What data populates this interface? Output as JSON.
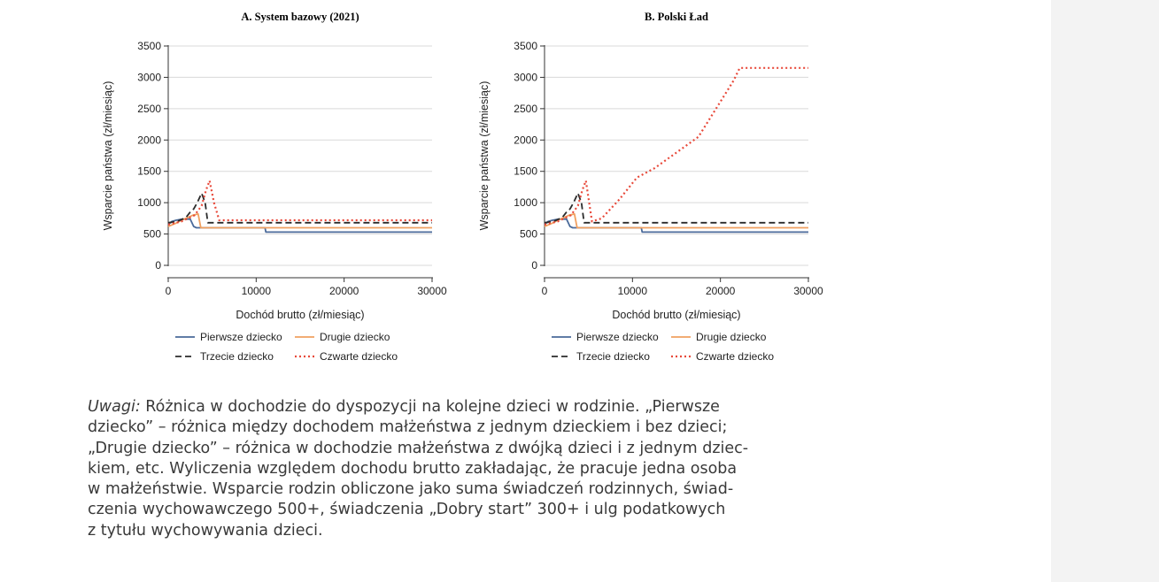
{
  "colors": {
    "first": "#4a6a9a",
    "second": "#f0a060",
    "third": "#2b2b2b",
    "fourth": "#e8493a",
    "axis": "#333333",
    "grid": "#d9d9d9",
    "side_band": "#f3f3f3"
  },
  "legend": {
    "first": "Pierwsze dziecko",
    "second": "Drugie dziecko",
    "third": "Trzecie dziecko",
    "fourth": "Czwarte dziecko"
  },
  "chart_data": [
    {
      "type": "line",
      "title": "A.   System bazowy (2021)",
      "xlabel": "Dochód brutto (zł/miesiąc)",
      "ylabel": "Wsparcie państwa (zł/miesiąc)",
      "xlim": [
        0,
        30000
      ],
      "ylim": [
        0,
        3500
      ],
      "xticks": [
        0,
        10000,
        20000,
        30000
      ],
      "yticks": [
        0,
        500,
        1000,
        1500,
        2000,
        2500,
        3000,
        3500
      ],
      "grid": true,
      "legend_position": "bottom",
      "series": [
        {
          "name": "Pierwsze dziecko",
          "style": "solid",
          "color_key": "first",
          "x": [
            0,
            400,
            900,
            1500,
            2500,
            2900,
            3200,
            11000,
            11100,
            30000
          ],
          "y": [
            650,
            700,
            720,
            735,
            740,
            620,
            600,
            600,
            530,
            530
          ]
        },
        {
          "name": "Drugie dziecko",
          "style": "solid",
          "color_key": "second",
          "x": [
            0,
            500,
            1000,
            1500,
            2200,
            2800,
            3400,
            3700,
            30000
          ],
          "y": [
            620,
            650,
            680,
            720,
            760,
            800,
            820,
            600,
            600
          ]
        },
        {
          "name": "Trzecie dziecko",
          "style": "dash",
          "color_key": "third",
          "x": [
            0,
            1000,
            2000,
            2500,
            2900,
            3300,
            3800,
            4200,
            4500,
            30000
          ],
          "y": [
            680,
            700,
            760,
            850,
            900,
            1000,
            1150,
            1000,
            680,
            680
          ]
        },
        {
          "name": "Czwarte dziecko",
          "style": "dot",
          "color_key": "fourth",
          "x": [
            0,
            1500,
            3000,
            3800,
            4300,
            4700,
            5200,
            5800,
            30000
          ],
          "y": [
            650,
            700,
            800,
            950,
            1200,
            1350,
            1000,
            720,
            720
          ]
        }
      ]
    },
    {
      "type": "line",
      "title": "B.   Polski Ład",
      "xlabel": "Dochód brutto (zł/miesiąc)",
      "ylabel": "Wsparcie państwa (zł/miesiąc)",
      "xlim": [
        0,
        30000
      ],
      "ylim": [
        0,
        3500
      ],
      "xticks": [
        0,
        10000,
        20000,
        30000
      ],
      "yticks": [
        0,
        500,
        1000,
        1500,
        2000,
        2500,
        3000,
        3500
      ],
      "grid": true,
      "legend_position": "bottom",
      "series": [
        {
          "name": "Pierwsze dziecko",
          "style": "solid",
          "color_key": "first",
          "x": [
            0,
            400,
            900,
            1500,
            2500,
            2900,
            3200,
            11000,
            11100,
            30000
          ],
          "y": [
            650,
            700,
            720,
            735,
            740,
            620,
            600,
            600,
            530,
            530
          ]
        },
        {
          "name": "Drugie dziecko",
          "style": "solid",
          "color_key": "second",
          "x": [
            0,
            500,
            1000,
            1500,
            2200,
            2800,
            3400,
            3700,
            30000
          ],
          "y": [
            620,
            650,
            680,
            720,
            760,
            800,
            820,
            600,
            600
          ]
        },
        {
          "name": "Trzecie dziecko",
          "style": "dash",
          "color_key": "third",
          "x": [
            0,
            1000,
            2000,
            2500,
            2900,
            3300,
            3800,
            4200,
            4500,
            30000
          ],
          "y": [
            680,
            700,
            760,
            850,
            900,
            1000,
            1150,
            1000,
            680,
            680
          ]
        },
        {
          "name": "Czwarte dziecko",
          "style": "dot",
          "color_key": "fourth",
          "x": [
            0,
            1500,
            3000,
            3800,
            4300,
            4700,
            5400,
            6500,
            8500,
            10500,
            12500,
            15000,
            17500,
            19500,
            21500,
            22200,
            30000
          ],
          "y": [
            650,
            700,
            800,
            950,
            1200,
            1350,
            700,
            750,
            1050,
            1400,
            1550,
            1800,
            2050,
            2500,
            2950,
            3150,
            3150
          ]
        }
      ]
    }
  ],
  "note": {
    "lead": "Uwagi:",
    "text": " Różnica w dochodzie do dyspozycji na kolejne dzieci w rodzinie. „Pierwsze\ndziecko” – różnica między dochodem małżeństwa z jednym dzieckiem i bez dzieci;\n„Drugie dziecko” – różnica w dochodzie małżeństwa z dwójką dzieci i z jednym dziec-\nkiem, etc. Wyliczenia względem dochodu brutto zakładając, że pracuje jedna osoba\nw małżeństwie. Wsparcie rodzin obliczone jako suma świadczeń rodzinnych, świad-\nczenia wychowawczego 500+, świadczenia „Dobry start” 300+ i ulg podatkowych\nz tytułu wychowywania dzieci."
  }
}
